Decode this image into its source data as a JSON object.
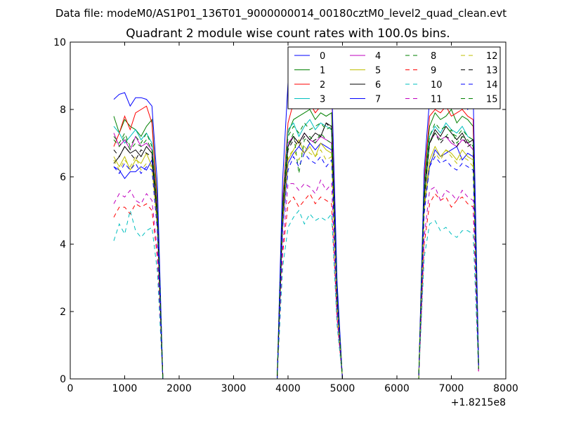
{
  "suptitle": "Data file: modeM0/AS1P01_136T01_9000000014_00180cztM0_level2_quad_clean.evt",
  "chart_data": {
    "type": "line",
    "title": "Quadrant 2 module wise count rates with 100.0s bins.",
    "xlabel": "",
    "ylabel": "",
    "x_offset_label": "+1.8215e8",
    "xlim": [
      0,
      8000
    ],
    "ylim": [
      0,
      10
    ],
    "x_ticks": [
      0,
      1000,
      2000,
      3000,
      4000,
      5000,
      6000,
      7000,
      8000
    ],
    "x_tick_labels": [
      "0",
      "1000",
      "2000",
      "3000",
      "4000",
      "5000",
      "6000",
      "7000",
      "8000"
    ],
    "y_ticks": [
      0,
      2,
      4,
      6,
      8,
      10
    ],
    "y_tick_labels": [
      "0",
      "2",
      "4",
      "6",
      "8",
      "10"
    ],
    "grid": false,
    "legend_position": "top-right",
    "legend_columns": 4,
    "x": [
      800,
      900,
      1000,
      1100,
      1200,
      1300,
      1400,
      1500,
      1600,
      1700,
      1800,
      1900,
      2000,
      2100,
      2200,
      2300,
      2400,
      2500,
      2600,
      2700,
      2800,
      2900,
      3000,
      3100,
      3200,
      3300,
      3400,
      3500,
      3600,
      3700,
      3800,
      3900,
      4000,
      4100,
      4200,
      4300,
      4400,
      4500,
      4600,
      4700,
      4800,
      4900,
      5000,
      5100,
      5200,
      5300,
      5400,
      5500,
      5600,
      5700,
      5800,
      5900,
      6000,
      6100,
      6200,
      6300,
      6400,
      6500,
      6600,
      6700,
      6800,
      6900,
      7000,
      7100,
      7200,
      7300,
      7400,
      7500
    ],
    "series": [
      {
        "name": "0",
        "color": "#0000ff",
        "dashed": false,
        "values": [
          6.3,
          6.2,
          5.95,
          6.15,
          6.15,
          6.3,
          6.2,
          6.5,
          4.5,
          0,
          0,
          0,
          0,
          0,
          0,
          0,
          0,
          0,
          0,
          0,
          0,
          0,
          0,
          0,
          0,
          0,
          0,
          0,
          0,
          0,
          0,
          4.5,
          6.4,
          6.7,
          6.9,
          6.7,
          7.0,
          6.8,
          7.0,
          6.9,
          6.8,
          2.3,
          0,
          0,
          0,
          0,
          0,
          0,
          0,
          0,
          0,
          0,
          0,
          0,
          0,
          0,
          0,
          5.1,
          6.3,
          6.8,
          6.6,
          6.7,
          6.8,
          6.9,
          6.5,
          6.7,
          6.6,
          0.4
        ]
      },
      {
        "name": "1",
        "color": "#008000",
        "dashed": false,
        "values": [
          7.8,
          7.3,
          7.7,
          7.5,
          7.4,
          7.2,
          7.5,
          7.7,
          5.3,
          0,
          0,
          0,
          0,
          0,
          0,
          0,
          0,
          0,
          0,
          0,
          0,
          0,
          0,
          0,
          0,
          0,
          0,
          0,
          0,
          0,
          0,
          5.2,
          7.3,
          7.7,
          7.8,
          7.9,
          8.0,
          7.7,
          7.9,
          7.8,
          7.9,
          2.6,
          0,
          0,
          0,
          0,
          0,
          0,
          0,
          0,
          0,
          0,
          0,
          0,
          0,
          0,
          0,
          5.8,
          7.5,
          7.9,
          7.7,
          7.8,
          8.0,
          7.6,
          7.8,
          7.7,
          7.5,
          0.4
        ]
      },
      {
        "name": "2",
        "color": "#ff0000",
        "dashed": false,
        "values": [
          6.9,
          7.3,
          7.8,
          7.4,
          7.9,
          8.0,
          8.1,
          7.6,
          5.1,
          0,
          0,
          0,
          0,
          0,
          0,
          0,
          0,
          0,
          0,
          0,
          0,
          0,
          0,
          0,
          0,
          0,
          0,
          0,
          0,
          0,
          0,
          5.3,
          7.6,
          8.2,
          8.1,
          8.3,
          8.2,
          7.9,
          8.1,
          8.3,
          8.7,
          2.7,
          0,
          0,
          0,
          0,
          0,
          0,
          0,
          0,
          0,
          0,
          0,
          0,
          0,
          0,
          0,
          5.9,
          7.8,
          8.0,
          7.9,
          8.1,
          7.8,
          7.9,
          8.0,
          7.8,
          7.7,
          0.4
        ]
      },
      {
        "name": "3",
        "color": "#00bfbf",
        "dashed": false,
        "values": [
          7.5,
          7.3,
          7.0,
          7.2,
          7.4,
          7.1,
          7.3,
          7.0,
          5.0,
          0,
          0,
          0,
          0,
          0,
          0,
          0,
          0,
          0,
          0,
          0,
          0,
          0,
          0,
          0,
          0,
          0,
          0,
          0,
          0,
          0,
          0,
          5.1,
          7.4,
          7.6,
          7.2,
          7.5,
          7.7,
          7.4,
          7.6,
          7.5,
          7.4,
          2.5,
          0,
          0,
          0,
          0,
          0,
          0,
          0,
          0,
          0,
          0,
          0,
          0,
          0,
          0,
          0,
          5.6,
          7.2,
          7.5,
          7.3,
          7.6,
          7.4,
          7.3,
          7.5,
          7.2,
          7.1,
          0.3
        ]
      },
      {
        "name": "4",
        "color": "#bf00bf",
        "dashed": false,
        "values": [
          7.3,
          6.9,
          7.1,
          6.8,
          7.2,
          6.9,
          7.0,
          6.8,
          4.9,
          0,
          0,
          0,
          0,
          0,
          0,
          0,
          0,
          0,
          0,
          0,
          0,
          0,
          0,
          0,
          0,
          0,
          0,
          0,
          0,
          0,
          0,
          5.0,
          7.0,
          7.2,
          7.0,
          7.3,
          7.1,
          7.0,
          7.2,
          7.1,
          7.0,
          2.4,
          0,
          0,
          0,
          0,
          0,
          0,
          0,
          0,
          0,
          0,
          0,
          0,
          0,
          0,
          0,
          5.5,
          7.0,
          7.3,
          7.1,
          7.2,
          7.0,
          6.9,
          7.1,
          7.0,
          6.8,
          0.3
        ]
      },
      {
        "name": "5",
        "color": "#bfbf00",
        "dashed": false,
        "values": [
          6.6,
          6.3,
          6.6,
          6.2,
          6.5,
          6.4,
          6.7,
          6.3,
          4.6,
          0,
          0,
          0,
          0,
          0,
          0,
          0,
          0,
          0,
          0,
          0,
          0,
          0,
          0,
          0,
          0,
          0,
          0,
          0,
          0,
          0,
          0,
          4.7,
          6.5,
          6.8,
          7.1,
          6.7,
          6.9,
          6.6,
          7.0,
          6.8,
          6.7,
          2.3,
          0,
          0,
          0,
          0,
          0,
          0,
          0,
          0,
          0,
          0,
          0,
          0,
          0,
          0,
          0,
          5.2,
          6.5,
          6.9,
          6.6,
          6.8,
          6.7,
          6.5,
          6.8,
          6.6,
          6.5,
          0.3
        ]
      },
      {
        "name": "6",
        "color": "#000000",
        "dashed": false,
        "values": [
          6.4,
          6.6,
          6.9,
          6.7,
          6.8,
          6.6,
          6.9,
          6.7,
          4.8,
          0,
          0,
          0,
          0,
          0,
          0,
          0,
          0,
          0,
          0,
          0,
          0,
          0,
          0,
          0,
          0,
          0,
          0,
          0,
          0,
          0,
          0,
          4.9,
          6.9,
          7.2,
          7.0,
          7.3,
          7.1,
          7.3,
          7.2,
          7.6,
          7.5,
          2.5,
          0,
          0,
          0,
          0,
          0,
          0,
          0,
          0,
          0,
          0,
          0,
          0,
          0,
          0,
          0,
          5.4,
          7.0,
          7.4,
          7.2,
          7.5,
          7.3,
          7.1,
          7.3,
          7.0,
          7.1,
          0.3
        ]
      },
      {
        "name": "7",
        "color": "#0000ff",
        "dashed": false,
        "values": [
          8.3,
          8.45,
          8.5,
          8.1,
          8.35,
          8.35,
          8.3,
          8.1,
          5.8,
          0,
          0,
          0,
          0,
          0,
          0,
          0,
          0,
          0,
          0,
          0,
          0,
          0,
          0,
          0,
          0,
          0,
          0,
          0,
          0,
          0,
          0,
          5.9,
          8.8,
          8.6,
          8.4,
          8.9,
          9.0,
          8.7,
          8.8,
          8.5,
          8.9,
          2.9,
          0,
          0,
          0,
          0,
          0,
          0,
          0,
          0,
          0,
          0,
          0,
          0,
          0,
          0,
          0,
          6.2,
          8.3,
          8.6,
          8.1,
          8.1,
          8.5,
          8.2,
          8.3,
          8.0,
          8.5,
          0.5
        ]
      },
      {
        "name": "8",
        "color": "#008000",
        "dashed": true,
        "values": [
          7.1,
          6.9,
          7.2,
          6.8,
          7.0,
          6.9,
          7.1,
          6.8,
          4.9,
          0,
          0,
          0,
          0,
          0,
          0,
          0,
          0,
          0,
          0,
          0,
          0,
          0,
          0,
          0,
          0,
          0,
          0,
          0,
          0,
          0,
          0,
          5.0,
          6.9,
          7.3,
          6.1,
          7.1,
          7.2,
          7.0,
          7.3,
          7.1,
          7.0,
          2.4,
          0,
          0,
          0,
          0,
          0,
          0,
          0,
          0,
          0,
          0,
          0,
          0,
          0,
          0,
          0,
          5.5,
          7.0,
          7.3,
          7.1,
          7.2,
          7.4,
          7.0,
          7.2,
          7.1,
          6.9,
          0.3
        ]
      },
      {
        "name": "9",
        "color": "#ff0000",
        "dashed": true,
        "values": [
          4.8,
          5.1,
          5.1,
          4.9,
          5.2,
          5.1,
          5.2,
          5.0,
          3.6,
          0,
          0,
          0,
          0,
          0,
          0,
          0,
          0,
          0,
          0,
          0,
          0,
          0,
          0,
          0,
          0,
          0,
          0,
          0,
          0,
          0,
          0,
          3.7,
          5.2,
          5.4,
          5.1,
          5.3,
          5.5,
          5.2,
          5.4,
          5.3,
          5.2,
          1.8,
          0,
          0,
          0,
          0,
          0,
          0,
          0,
          0,
          0,
          0,
          0,
          0,
          0,
          0,
          0,
          4.0,
          5.2,
          5.5,
          5.3,
          5.4,
          5.1,
          5.3,
          5.4,
          5.2,
          5.1,
          0.2
        ]
      },
      {
        "name": "10",
        "color": "#00bfbf",
        "dashed": true,
        "values": [
          4.1,
          4.6,
          4.3,
          5.0,
          4.4,
          4.2,
          4.4,
          4.5,
          3.2,
          0,
          0,
          0,
          0,
          0,
          0,
          0,
          0,
          0,
          0,
          0,
          0,
          0,
          0,
          0,
          0,
          0,
          0,
          0,
          0,
          0,
          0,
          3.3,
          4.5,
          4.8,
          5.0,
          4.6,
          4.9,
          4.7,
          4.8,
          4.7,
          4.9,
          1.6,
          0,
          0,
          0,
          0,
          0,
          0,
          0,
          0,
          0,
          0,
          0,
          0,
          0,
          0,
          0,
          3.6,
          4.6,
          4.7,
          4.4,
          4.5,
          4.3,
          4.2,
          4.4,
          4.4,
          4.3,
          0.2
        ]
      },
      {
        "name": "11",
        "color": "#bf00bf",
        "dashed": true,
        "values": [
          5.2,
          5.5,
          5.4,
          5.6,
          5.3,
          5.2,
          5.5,
          5.3,
          3.8,
          0,
          0,
          0,
          0,
          0,
          0,
          0,
          0,
          0,
          0,
          0,
          0,
          0,
          0,
          0,
          0,
          0,
          0,
          0,
          0,
          0,
          0,
          3.9,
          5.8,
          5.8,
          5.6,
          5.8,
          5.7,
          5.5,
          5.9,
          5.6,
          5.8,
          1.9,
          0,
          0,
          0,
          0,
          0,
          0,
          0,
          0,
          0,
          0,
          0,
          0,
          0,
          0,
          0,
          4.2,
          5.6,
          5.7,
          5.3,
          5.6,
          5.5,
          5.3,
          5.6,
          5.4,
          5.3,
          0.2
        ]
      },
      {
        "name": "12",
        "color": "#bfbf00",
        "dashed": true,
        "values": [
          6.5,
          6.2,
          6.5,
          6.3,
          6.6,
          6.2,
          6.4,
          6.3,
          4.5,
          0,
          0,
          0,
          0,
          0,
          0,
          0,
          0,
          0,
          0,
          0,
          0,
          0,
          0,
          0,
          0,
          0,
          0,
          0,
          0,
          0,
          0,
          4.6,
          6.6,
          6.8,
          6.5,
          6.9,
          6.7,
          6.6,
          6.8,
          6.5,
          6.6,
          2.2,
          0,
          0,
          0,
          0,
          0,
          0,
          0,
          0,
          0,
          0,
          0,
          0,
          0,
          0,
          0,
          5.0,
          6.4,
          6.7,
          6.5,
          6.8,
          6.6,
          6.4,
          6.6,
          6.5,
          6.3,
          0.3
        ]
      },
      {
        "name": "13",
        "color": "#000000",
        "dashed": true,
        "values": [
          6.8,
          6.6,
          6.9,
          6.7,
          6.5,
          6.8,
          6.7,
          6.6,
          4.8,
          0,
          0,
          0,
          0,
          0,
          0,
          0,
          0,
          0,
          0,
          0,
          0,
          0,
          0,
          0,
          0,
          0,
          0,
          0,
          0,
          0,
          0,
          4.9,
          6.8,
          7.1,
          6.9,
          7.2,
          7.0,
          7.1,
          7.2,
          7.6,
          7.4,
          2.4,
          0,
          0,
          0,
          0,
          0,
          0,
          0,
          0,
          0,
          0,
          0,
          0,
          0,
          0,
          0,
          5.3,
          7.0,
          7.3,
          7.0,
          7.2,
          7.1,
          6.9,
          7.2,
          6.9,
          7.0,
          0.3
        ]
      },
      {
        "name": "14",
        "color": "#0000ff",
        "dashed": true,
        "values": [
          6.3,
          6.1,
          6.4,
          6.2,
          6.4,
          6.1,
          6.3,
          6.2,
          4.4,
          0,
          0,
          0,
          0,
          0,
          0,
          0,
          0,
          0,
          0,
          0,
          0,
          0,
          0,
          0,
          0,
          0,
          0,
          0,
          0,
          0,
          0,
          4.5,
          6.2,
          6.6,
          6.3,
          6.7,
          6.5,
          6.4,
          6.6,
          6.3,
          6.5,
          2.2,
          0,
          0,
          0,
          0,
          0,
          0,
          0,
          0,
          0,
          0,
          0,
          0,
          0,
          0,
          0,
          4.9,
          6.3,
          6.6,
          6.4,
          6.5,
          6.3,
          6.2,
          6.4,
          6.3,
          6.2,
          0.3
        ]
      },
      {
        "name": "15",
        "color": "#008000",
        "dashed": true,
        "values": [
          7.2,
          7.0,
          7.3,
          6.9,
          7.2,
          7.0,
          7.3,
          6.9,
          5.0,
          0,
          0,
          0,
          0,
          0,
          0,
          0,
          0,
          0,
          0,
          0,
          0,
          0,
          0,
          0,
          0,
          0,
          0,
          0,
          0,
          0,
          0,
          5.1,
          7.2,
          7.5,
          7.3,
          7.6,
          7.4,
          7.5,
          7.6,
          7.4,
          7.5,
          2.5,
          0,
          0,
          0,
          0,
          0,
          0,
          0,
          0,
          0,
          0,
          0,
          0,
          0,
          0,
          0,
          5.6,
          7.2,
          7.6,
          7.4,
          7.5,
          7.3,
          7.2,
          7.4,
          7.2,
          7.1,
          0.3
        ]
      }
    ]
  }
}
